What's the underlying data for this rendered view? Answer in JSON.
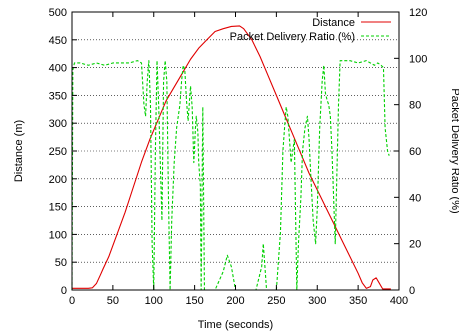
{
  "chart_data": {
    "type": "line",
    "title": "",
    "xlabel": "Time (seconds)",
    "ylabel": "Distance (m)",
    "y2label": "Packet Delivery Ratio (%)",
    "xlim": [
      0,
      400
    ],
    "ylim": [
      0,
      500
    ],
    "y2lim": [
      0,
      120
    ],
    "xticks": [
      0,
      50,
      100,
      150,
      200,
      250,
      300,
      350,
      400
    ],
    "yticks": [
      0,
      50,
      100,
      150,
      200,
      250,
      300,
      350,
      400,
      450,
      500
    ],
    "y2ticks": [
      0,
      20,
      40,
      60,
      80,
      100,
      120
    ],
    "grid": "horizontal dotted",
    "legend_position": "top-right",
    "series": [
      {
        "name": "Distance",
        "axis": "left",
        "color": "#e00000",
        "style": "solid",
        "points": [
          [
            0,
            3
          ],
          [
            10,
            3
          ],
          [
            20,
            3
          ],
          [
            25,
            4
          ],
          [
            30,
            12
          ],
          [
            35,
            28
          ],
          [
            38,
            38
          ],
          [
            45,
            60
          ],
          [
            55,
            100
          ],
          [
            65,
            140
          ],
          [
            75,
            185
          ],
          [
            85,
            230
          ],
          [
            95,
            270
          ],
          [
            105,
            305
          ],
          [
            115,
            340
          ],
          [
            125,
            365
          ],
          [
            135,
            390
          ],
          [
            145,
            415
          ],
          [
            155,
            435
          ],
          [
            165,
            450
          ],
          [
            175,
            465
          ],
          [
            185,
            470
          ],
          [
            195,
            474
          ],
          [
            205,
            475
          ],
          [
            210,
            470
          ],
          [
            220,
            450
          ],
          [
            230,
            420
          ],
          [
            240,
            385
          ],
          [
            250,
            350
          ],
          [
            260,
            315
          ],
          [
            270,
            280
          ],
          [
            280,
            245
          ],
          [
            290,
            210
          ],
          [
            300,
            180
          ],
          [
            310,
            150
          ],
          [
            320,
            120
          ],
          [
            330,
            90
          ],
          [
            340,
            60
          ],
          [
            350,
            30
          ],
          [
            355,
            13
          ],
          [
            360,
            3
          ],
          [
            365,
            6
          ],
          [
            368,
            18
          ],
          [
            372,
            22
          ],
          [
            376,
            12
          ],
          [
            380,
            2
          ],
          [
            390,
            2
          ]
        ]
      },
      {
        "name": "Packet Delivery Ratio (%)",
        "axis": "right",
        "color": "#00d000",
        "style": "dashed",
        "points": [
          [
            0,
            0
          ],
          [
            1,
            95
          ],
          [
            3,
            98
          ],
          [
            10,
            98
          ],
          [
            20,
            97
          ],
          [
            30,
            98
          ],
          [
            40,
            97
          ],
          [
            50,
            98
          ],
          [
            60,
            98
          ],
          [
            70,
            98
          ],
          [
            80,
            99
          ],
          [
            85,
            98
          ],
          [
            88,
            80
          ],
          [
            90,
            75
          ],
          [
            92,
            90
          ],
          [
            94,
            99
          ],
          [
            96,
            80
          ],
          [
            98,
            20
          ],
          [
            100,
            0
          ],
          [
            102,
            60
          ],
          [
            104,
            99
          ],
          [
            106,
            80
          ],
          [
            108,
            55
          ],
          [
            110,
            30
          ],
          [
            112,
            90
          ],
          [
            114,
            99
          ],
          [
            116,
            90
          ],
          [
            118,
            40
          ],
          [
            120,
            0
          ],
          [
            122,
            30
          ],
          [
            125,
            55
          ],
          [
            128,
            70
          ],
          [
            132,
            80
          ],
          [
            134,
            90
          ],
          [
            136,
            97
          ],
          [
            138,
            95
          ],
          [
            140,
            82
          ],
          [
            142,
            73
          ],
          [
            145,
            88
          ],
          [
            147,
            79
          ],
          [
            149,
            55
          ],
          [
            151,
            70
          ],
          [
            152,
            75
          ],
          [
            154,
            68
          ],
          [
            155,
            55
          ],
          [
            157,
            45
          ],
          [
            158,
            0
          ],
          [
            160,
            79
          ],
          [
            162,
            0
          ],
          [
            165,
            0
          ],
          [
            175,
            0
          ],
          [
            185,
            8
          ],
          [
            190,
            15
          ],
          [
            195,
            10
          ],
          [
            200,
            0
          ],
          [
            225,
            0
          ],
          [
            232,
            10
          ],
          [
            234,
            20
          ],
          [
            236,
            10
          ],
          [
            238,
            0
          ],
          [
            250,
            0
          ],
          [
            255,
            25
          ],
          [
            258,
            60
          ],
          [
            260,
            70
          ],
          [
            262,
            79
          ],
          [
            264,
            75
          ],
          [
            266,
            65
          ],
          [
            268,
            55
          ],
          [
            270,
            60
          ],
          [
            272,
            65
          ],
          [
            275,
            0
          ],
          [
            277,
            20
          ],
          [
            280,
            40
          ],
          [
            282,
            60
          ],
          [
            285,
            70
          ],
          [
            288,
            75
          ],
          [
            290,
            65
          ],
          [
            292,
            50
          ],
          [
            295,
            30
          ],
          [
            298,
            20
          ],
          [
            300,
            35
          ],
          [
            303,
            70
          ],
          [
            306,
            90
          ],
          [
            308,
            97
          ],
          [
            310,
            85
          ],
          [
            312,
            82
          ],
          [
            314,
            80
          ],
          [
            316,
            75
          ],
          [
            318,
            60
          ],
          [
            320,
            40
          ],
          [
            322,
            20
          ],
          [
            324,
            50
          ],
          [
            326,
            80
          ],
          [
            328,
            99
          ],
          [
            330,
            99
          ],
          [
            340,
            99
          ],
          [
            350,
            98
          ],
          [
            360,
            99
          ],
          [
            365,
            98
          ],
          [
            370,
            97
          ],
          [
            374,
            98
          ],
          [
            378,
            97
          ],
          [
            381,
            96
          ],
          [
            383,
            70
          ],
          [
            386,
            60
          ],
          [
            388,
            58
          ]
        ]
      }
    ]
  }
}
